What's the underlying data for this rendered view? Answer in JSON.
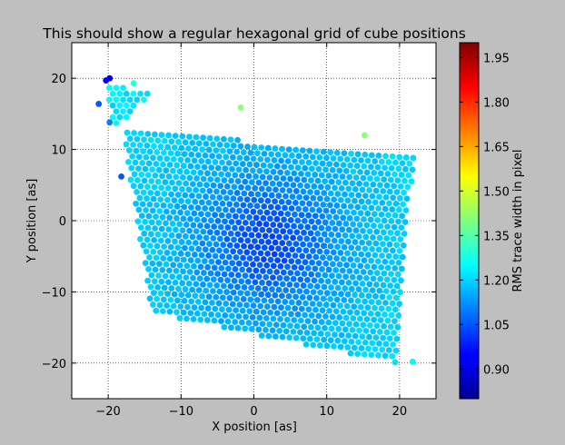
{
  "window": {
    "background": "#bfbfbf"
  },
  "chart_data": {
    "type": "scatter",
    "title": "This should show a regular hexagonal grid of cube positions",
    "xlabel": "X position [as]",
    "ylabel": "Y position [as]",
    "xlim": [
      -25,
      25
    ],
    "ylim": [
      -25,
      25
    ],
    "xticks": [
      -20,
      -10,
      0,
      10,
      20
    ],
    "yticks": [
      -20,
      -10,
      0,
      10,
      20
    ],
    "xtick_labels": [
      "−20",
      "−10",
      "0",
      "10",
      "20"
    ],
    "ytick_labels": [
      "−20",
      "−10",
      "0",
      "10",
      "20"
    ],
    "grid": true,
    "grid_style": "dotted",
    "colorbar": {
      "label": "RMS trace width in pixel",
      "min": 0.8,
      "max": 2.0,
      "ticks": [
        0.9,
        1.05,
        1.2,
        1.35,
        1.5,
        1.65,
        1.8,
        1.95
      ],
      "tick_labels": [
        "0.90",
        "1.05",
        "1.20",
        "1.35",
        "1.50",
        "1.65",
        "1.80",
        "1.95"
      ],
      "colormap": "jet"
    },
    "series": [
      {
        "name": "cube positions",
        "grid_region": {
          "corners": [
            [
              -18,
              12.5
            ],
            [
              22,
              9.5
            ],
            [
              19.5,
              -20
            ],
            [
              -14,
              -13
            ]
          ],
          "spacing": 0.95,
          "angle_deg": -4
        },
        "value_baseline": 1.15,
        "outlier_points": [
          {
            "x": -20.3,
            "y": 19.7,
            "value": 0.95
          },
          {
            "x": -19.8,
            "y": 20.0,
            "value": 0.95
          },
          {
            "x": -21.3,
            "y": 16.4,
            "value": 1.05
          },
          {
            "x": -1.8,
            "y": 15.9,
            "value": 1.42
          },
          {
            "x": 15.2,
            "y": 12.0,
            "value": 1.42
          },
          {
            "x": -16.5,
            "y": 19.3,
            "value": 1.3
          },
          {
            "x": 21.8,
            "y": -19.8,
            "value": 1.25
          },
          {
            "x": -18.2,
            "y": 6.2,
            "value": 1.05
          },
          {
            "x": -19.8,
            "y": 13.8,
            "value": 1.1
          }
        ],
        "wing_points": {
          "corners": [
            [
              -20.5,
              19.2
            ],
            [
              -13.5,
              18.0
            ],
            [
              -19.2,
              13.0
            ]
          ],
          "value": 1.22
        }
      }
    ]
  }
}
